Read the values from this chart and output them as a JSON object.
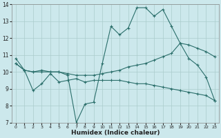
{
  "xlabel": "Humidex (Indice chaleur)",
  "background_color": "#cce8ec",
  "grid_color": "#aacccc",
  "line_color": "#2a6e6a",
  "xlim": [
    -0.5,
    23.5
  ],
  "ylim": [
    7,
    14
  ],
  "xticks": [
    0,
    1,
    2,
    3,
    4,
    5,
    6,
    7,
    8,
    9,
    10,
    11,
    12,
    13,
    14,
    15,
    16,
    17,
    18,
    19,
    20,
    21,
    22,
    23
  ],
  "yticks": [
    7,
    8,
    9,
    10,
    11,
    12,
    13,
    14
  ],
  "line1_x": [
    0,
    1,
    2,
    3,
    4,
    5,
    6,
    7,
    8,
    9,
    10,
    11,
    12,
    13,
    14,
    15,
    16,
    17,
    18,
    19,
    20,
    21,
    22,
    23
  ],
  "line1_y": [
    10.8,
    10.1,
    10.0,
    10.1,
    10.0,
    10.0,
    9.8,
    7.0,
    8.1,
    8.2,
    10.5,
    12.7,
    12.2,
    12.6,
    13.8,
    13.8,
    13.3,
    13.7,
    12.7,
    11.7,
    10.8,
    10.4,
    9.7,
    8.3
  ],
  "line2_x": [
    0,
    1,
    2,
    3,
    4,
    5,
    6,
    7,
    8,
    9,
    10,
    11,
    12,
    13,
    14,
    15,
    16,
    17,
    18,
    19,
    20,
    21,
    22,
    23
  ],
  "line2_y": [
    10.5,
    10.1,
    10.0,
    10.0,
    10.0,
    10.0,
    9.9,
    9.8,
    9.8,
    9.8,
    9.9,
    10.0,
    10.1,
    10.3,
    10.4,
    10.5,
    10.7,
    10.9,
    11.1,
    11.7,
    11.6,
    11.4,
    11.2,
    10.9
  ],
  "line3_x": [
    0,
    1,
    2,
    3,
    4,
    5,
    6,
    7,
    8,
    9,
    10,
    11,
    12,
    13,
    14,
    15,
    16,
    17,
    18,
    19,
    20,
    21,
    22,
    23
  ],
  "line3_y": [
    10.5,
    10.1,
    8.9,
    9.3,
    9.9,
    9.4,
    9.5,
    9.6,
    9.4,
    9.5,
    9.5,
    9.5,
    9.5,
    9.4,
    9.3,
    9.3,
    9.2,
    9.1,
    9.0,
    8.9,
    8.8,
    8.7,
    8.6,
    8.3
  ]
}
